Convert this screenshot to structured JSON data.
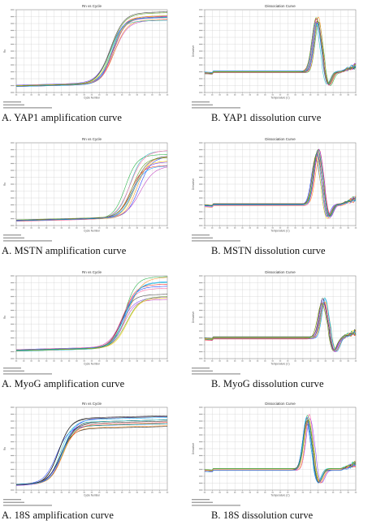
{
  "figure": {
    "panels": [
      {
        "id": "yap1-amp",
        "kind": "amplification",
        "plot_title": "Rn vs Cycle",
        "xlabel": "Cycle Number",
        "caption": "A. YAP1 amplification curve"
      },
      {
        "id": "yap1-diss",
        "kind": "dissociation",
        "plot_title": "Dissociation Curve",
        "xlabel": "Temperature (C)",
        "caption": "B. YAP1 dissolution curve"
      },
      {
        "id": "mstn-amp",
        "kind": "amplification",
        "plot_title": "Rn vs Cycle",
        "xlabel": "Cycle Number",
        "caption": "A. MSTN amplification curve"
      },
      {
        "id": "mstn-diss",
        "kind": "dissociation",
        "plot_title": "Dissociation Curve",
        "xlabel": "Temperature (C)",
        "caption": "B. MSTN dissolution curve"
      },
      {
        "id": "myog-amp",
        "kind": "amplification",
        "plot_title": "Rn vs Cycle",
        "xlabel": "Cycle Number",
        "caption": "A. MyoG amplification curve"
      },
      {
        "id": "myog-diss",
        "kind": "dissociation",
        "plot_title": "Dissociation Curve",
        "xlabel": "Temperature (C)",
        "caption": "B. MyoG dissolution curve"
      },
      {
        "id": "18s-amp",
        "kind": "amplification",
        "plot_title": "Rn vs Cycle",
        "xlabel": "Cycle Number",
        "caption": "A. 18S amplification curve"
      },
      {
        "id": "18s-diss",
        "kind": "dissociation",
        "plot_title": "Dissociation Curve",
        "xlabel": "Temperature (C)",
        "caption": "B. 18S dissolution curve"
      }
    ]
  },
  "chart_data": [
    {
      "type": "line",
      "title": "Rn vs Cycle",
      "xlabel": "Cycle Number",
      "ylabel": "Rn",
      "x_range": [
        1,
        40
      ],
      "grid": true,
      "curves": {
        "count": 12,
        "baseline_fraction": 0.08,
        "plateau_fraction": [
          0.82,
          0.93
        ],
        "midpoint_cycle": [
          25,
          27
        ]
      },
      "colors": [
        "#1f3fff",
        "#ff2020",
        "#20b040",
        "#c040c0",
        "#ff9020",
        "#20c0c0",
        "#8040ff",
        "#ffd000",
        "#404040",
        "#ff60a0",
        "#00a0ff",
        "#60a020"
      ]
    },
    {
      "type": "line",
      "title": "Dissociation Curve",
      "xlabel": "Temperature (C)",
      "ylabel": "Derivative",
      "x_range": [
        60,
        95
      ],
      "grid": true,
      "curves": {
        "count": 12,
        "peak_temperature": [
          85.5,
          86.5
        ],
        "peak_fraction": [
          0.84,
          0.93
        ]
      },
      "colors": [
        "#1f3fff",
        "#ff2020",
        "#20b040",
        "#c040c0",
        "#ff9020",
        "#20c0c0",
        "#8040ff",
        "#ffd000",
        "#404040",
        "#ff60a0",
        "#00a0ff",
        "#60a020"
      ]
    },
    {
      "type": "line",
      "title": "Rn vs Cycle",
      "xlabel": "Cycle Number",
      "ylabel": "Rn",
      "x_range": [
        1,
        40
      ],
      "grid": true,
      "curves": {
        "count": 12,
        "baseline_fraction": 0.06,
        "plateau_fraction": [
          0.66,
          0.88
        ],
        "midpoint_cycle": [
          29,
          33
        ]
      },
      "colors": [
        "#1f3fff",
        "#ff2020",
        "#20b040",
        "#c040c0",
        "#ff9020",
        "#20c0c0",
        "#8040ff",
        "#ffd000",
        "#404040",
        "#ff60a0",
        "#00a0ff",
        "#60a020"
      ]
    },
    {
      "type": "line",
      "title": "Dissociation Curve",
      "xlabel": "Temperature (C)",
      "ylabel": "Derivative",
      "x_range": [
        60,
        95
      ],
      "grid": true,
      "curves": {
        "count": 12,
        "peak_temperature": [
          85.5,
          86.5
        ],
        "peak_fraction": [
          0.8,
          0.93
        ]
      },
      "colors": [
        "#1f3fff",
        "#ff2020",
        "#20b040",
        "#c040c0",
        "#ff9020",
        "#20c0c0",
        "#8040ff",
        "#ffd000",
        "#404040",
        "#ff60a0",
        "#00a0ff",
        "#60a020"
      ]
    },
    {
      "type": "line",
      "title": "Rn vs Cycle",
      "xlabel": "Cycle Number",
      "ylabel": "Rn",
      "x_range": [
        1,
        40
      ],
      "grid": true,
      "curves": {
        "count": 12,
        "baseline_fraction": 0.1,
        "plateau_fraction": [
          0.66,
          0.95
        ],
        "midpoint_cycle": [
          28,
          30
        ]
      },
      "colors": [
        "#1f3fff",
        "#ff2020",
        "#20b040",
        "#c040c0",
        "#ff9020",
        "#20c0c0",
        "#8040ff",
        "#ffd000",
        "#404040",
        "#ff60a0",
        "#00a0ff",
        "#60a020"
      ]
    },
    {
      "type": "line",
      "title": "Dissociation Curve",
      "xlabel": "Temperature (C)",
      "ylabel": "Derivative",
      "x_range": [
        60,
        95
      ],
      "grid": true,
      "curves": {
        "count": 12,
        "peak_temperature": [
          87,
          88
        ],
        "peak_fraction": [
          0.66,
          0.74
        ]
      },
      "colors": [
        "#1f3fff",
        "#ff2020",
        "#20b040",
        "#c040c0",
        "#ff9020",
        "#20c0c0",
        "#8040ff",
        "#ffd000",
        "#404040",
        "#ff60a0",
        "#00a0ff",
        "#60a020"
      ]
    },
    {
      "type": "line",
      "title": "Rn vs Cycle",
      "xlabel": "Cycle Number",
      "ylabel": "Rn",
      "x_range": [
        1,
        40
      ],
      "grid": true,
      "curves": {
        "count": 12,
        "baseline_fraction": 0.06,
        "plateau_fraction": [
          0.72,
          0.86
        ],
        "midpoint_cycle": [
          11,
          13
        ]
      },
      "colors": [
        "#000000",
        "#1f3fff",
        "#20b040",
        "#202020",
        "#ff2020",
        "#20c0c0",
        "#404040",
        "#8040ff",
        "#101010",
        "#ff9020",
        "#303030",
        "#00a0ff"
      ]
    },
    {
      "type": "line",
      "title": "Dissociation Curve",
      "xlabel": "Temperature (C)",
      "ylabel": "Derivative",
      "x_range": [
        60,
        95
      ],
      "grid": true,
      "curves": {
        "count": 12,
        "peak_temperature": [
          83.5,
          84.5
        ],
        "peak_fraction": [
          0.82,
          0.92
        ]
      },
      "colors": [
        "#1f3fff",
        "#ff2020",
        "#20b040",
        "#c040c0",
        "#ff9020",
        "#20c0c0",
        "#8040ff",
        "#ffd000",
        "#404040",
        "#ff60a0",
        "#00a0ff",
        "#60a020"
      ]
    }
  ]
}
